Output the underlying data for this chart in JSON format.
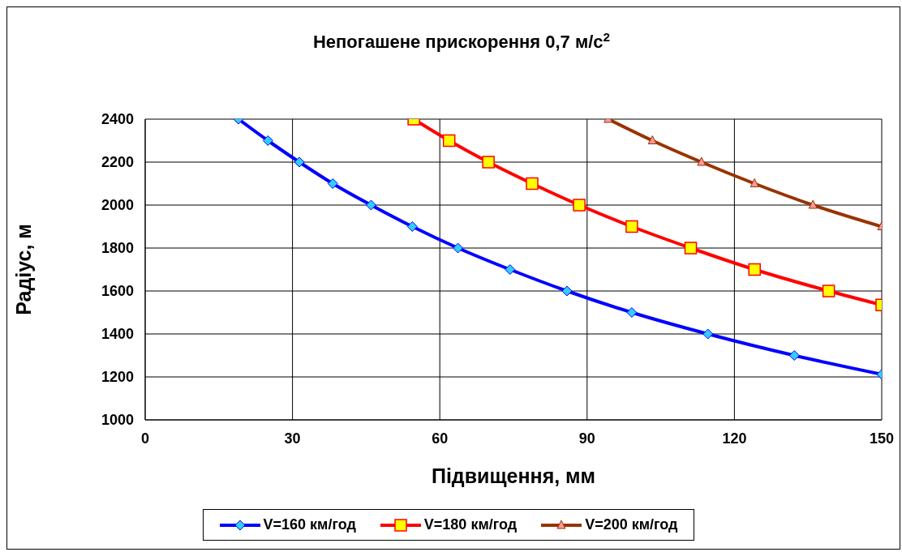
{
  "chart_data": {
    "type": "line",
    "title": "Непогашене прискорення 0,7 м/с$^{2}$",
    "xlabel": "Підвищення, мм",
    "ylabel": "Радіус, м",
    "xlim": [
      0,
      150
    ],
    "xticks": [
      0,
      30,
      60,
      90,
      120,
      150
    ],
    "ylim": [
      1000,
      2400
    ],
    "yticks": [
      1000,
      1200,
      1400,
      1600,
      1800,
      2000,
      2200,
      2400
    ],
    "grid": true,
    "legend": "bottom",
    "line_style": "solid",
    "series": [
      {
        "name": "V=160 км/год",
        "color": "#0000ff",
        "marker": "diamond",
        "x": [
          19.0,
          25.0,
          31.4,
          38.2,
          46.0,
          54.4,
          63.7,
          74.3,
          85.9,
          99.1,
          114.6,
          132.2,
          150
        ],
        "values": [
          2400,
          2300,
          2200,
          2100,
          2000,
          1900,
          1800,
          1700,
          1600,
          1500,
          1400,
          1300,
          1212
        ]
      },
      {
        "name": "V=180 км/год",
        "color": "#ff0000",
        "marker": "square",
        "x": [
          54.7,
          61.9,
          69.9,
          78.8,
          88.4,
          99.1,
          111.1,
          124.1,
          139.2,
          150
        ],
        "values": [
          2400,
          2300,
          2200,
          2100,
          2000,
          1900,
          1800,
          1700,
          1600,
          1535
        ]
      },
      {
        "name": "V=200 км/год",
        "color": "#993300",
        "marker": "triangle",
        "x": [
          94.3,
          103.3,
          113.3,
          124.1,
          136.0,
          150
        ],
        "values": [
          2400,
          2300,
          2200,
          2100,
          2000,
          1900
        ]
      }
    ]
  }
}
